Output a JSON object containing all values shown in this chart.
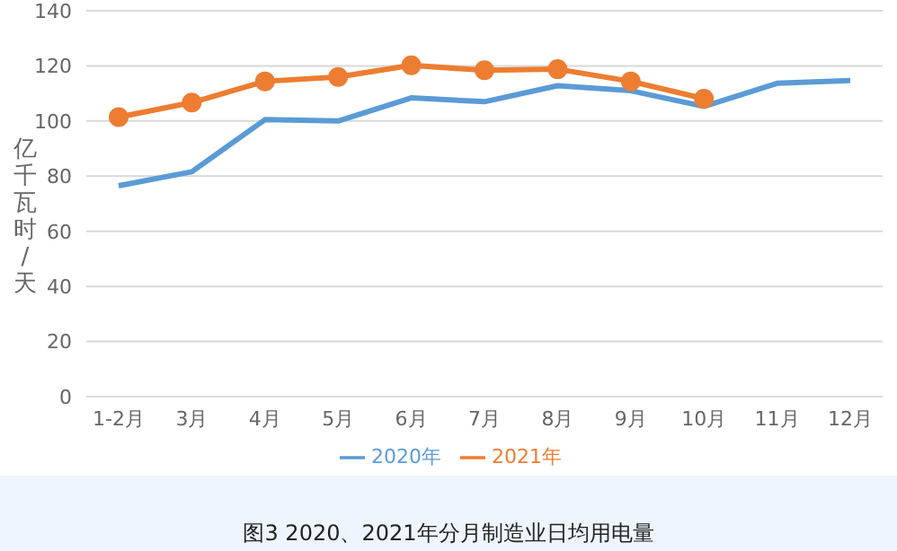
{
  "chart_data": {
    "type": "line",
    "ylabel": "亿千瓦时/天",
    "categories": [
      "1-2月",
      "3月",
      "4月",
      "5月",
      "6月",
      "7月",
      "8月",
      "9月",
      "10月",
      "11月",
      "12月"
    ],
    "series": [
      {
        "name": "2020年",
        "color": "#5b9bd5",
        "marker": "none",
        "values": [
          76.5,
          81.6,
          100.5,
          100,
          108.4,
          107,
          112.8,
          111,
          105.3,
          113.7,
          114.7
        ]
      },
      {
        "name": "2021年",
        "color": "#ed7d31",
        "marker": "circle",
        "values": [
          101.4,
          106.7,
          114.4,
          116,
          120.2,
          118.4,
          118.8,
          114.4,
          108.1,
          null,
          null
        ]
      }
    ],
    "ylim": [
      0,
      140
    ],
    "yticks": [
      0,
      20,
      40,
      60,
      80,
      100,
      120,
      140
    ],
    "grid": "y",
    "legend": "bottom",
    "annotations": [
      "图3 2020、2021年分月制造业日均用电量"
    ]
  }
}
